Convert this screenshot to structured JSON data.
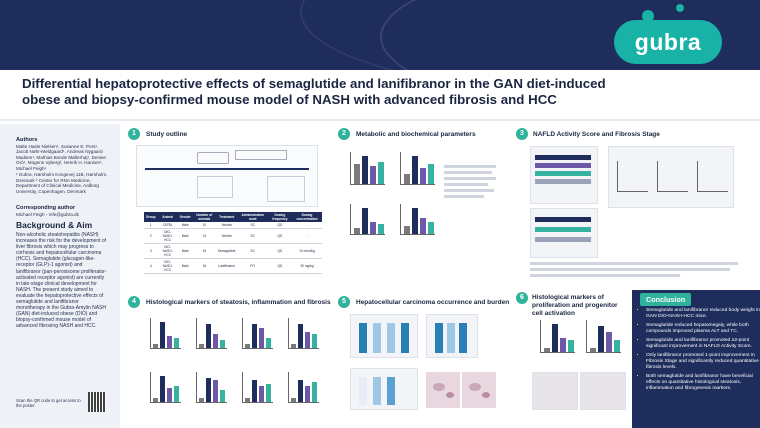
{
  "header": {
    "logo_text": "gubra"
  },
  "title": "Differential hepatoprotective effects of semaglutide and lanifibranor in the GAN diet-induced obese and biopsy-confirmed mouse model of NASH with advanced fibrosis and HCC",
  "left": {
    "authors_heading": "Authors",
    "authors": "Malte Hasle Nielsen¹, Susanne E. Pors¹, Jacob Nøhr-Meldgaard¹, Andreas Nygaard Madsen¹, Mathias Bonde Møllerhøj¹, Denise Oró¹, Mogens Vyberg², Henrik H. Hansen¹, Michael Feigh¹",
    "affiliations": "¹ Gubra, Hørsholm Kongevej 11B, Hørsholm, Denmark ² Center for RNA Medicine, Department of Clinical Medicine, Aalborg University, Copenhagen, Denmark",
    "corresponding_heading": "Corresponding author",
    "corresponding": "Michael Feigh - mfe@gubra.dk",
    "background_heading": "Background & Aim",
    "background": "Non-alcoholic steatohepatitis (NASH) increases the risk for the development of liver fibrosis which may progress to cirrhosis and hepatocellular carcinoma (HCC). Semaglutide (glucagon-like-receptor (GLP)-1 agonist) and lanifibranor (pan-peroxisome proliferator-activated receptor agonist) are currently in late-stage clinical development for NASH. The present study aimed to evaluate the hepatoprotective effects of semaglutide and lanifibranor monotherapy in the Gubra-Amylin NASH (GAN) diet-induced obese (DIO) and biopsy-confirmed mouse model of advanced fibrosing NASH and HCC.",
    "qr_text": "Scan the QR code to get access to the poster."
  },
  "sections": [
    {
      "num": "1",
      "title": "Study outline"
    },
    {
      "num": "2",
      "title": "Metabolic and biochemical parameters"
    },
    {
      "num": "3",
      "title": "NAFLD Activity Score and Fibrosis Stage"
    },
    {
      "num": "4",
      "title": "Histological markers of steatosis, inflammation and fibrosis"
    },
    {
      "num": "5",
      "title": "Hepatocellular carcinoma occurrence and burden"
    },
    {
      "num": "6",
      "title": "Histological markers of proliferation and progenitor cell activation"
    }
  ],
  "study": {
    "table_headers": [
      "Group",
      "Animal",
      "Gender",
      "Number of animals",
      "Treatment",
      "Administration route",
      "Dosing frequency",
      "Dosing concentration"
    ],
    "rows": [
      [
        "1",
        "C57BL",
        "Male",
        "10",
        "Vehicle",
        "SC",
        "QD",
        "-"
      ],
      [
        "2",
        "DIO-NASH-HCC",
        "Male",
        "14",
        "Vehicle",
        "SC",
        "QD",
        "-"
      ],
      [
        "3",
        "DIO-NASH-HCC",
        "Male",
        "15",
        "Semaglutide",
        "SC",
        "QD",
        "10 nmol/kg"
      ],
      [
        "4",
        "DIO-NASH-HCC",
        "Male",
        "16",
        "Lanifibranor",
        "PO",
        "QD",
        "30 mg/kg"
      ]
    ]
  },
  "conclusion": {
    "heading": "Conclusion",
    "items": [
      "Semaglutide and lanifibranor reduced body weight in GAN DIO-NASH-HCC mice.",
      "Semaglutide reduced hepatomegaly, while both compounds improved plasma ALT and TC.",
      "Semaglutide and lanifibranor promoted ≥2-point significant improvement in NAFLD Activity Score.",
      "Only lanifibranor promoted 1-point improvement in Fibrosis Stage and significantly reduced quantitative fibrosis levels.",
      "Both semaglutide and lanifibranor have beneficial effects on quantitative histological steatosis, inflammation and fibrogenesis markers."
    ]
  },
  "colors": {
    "navy": "#1e2d5c",
    "teal": "#2fb39c",
    "purple": "#6c5aa8"
  }
}
